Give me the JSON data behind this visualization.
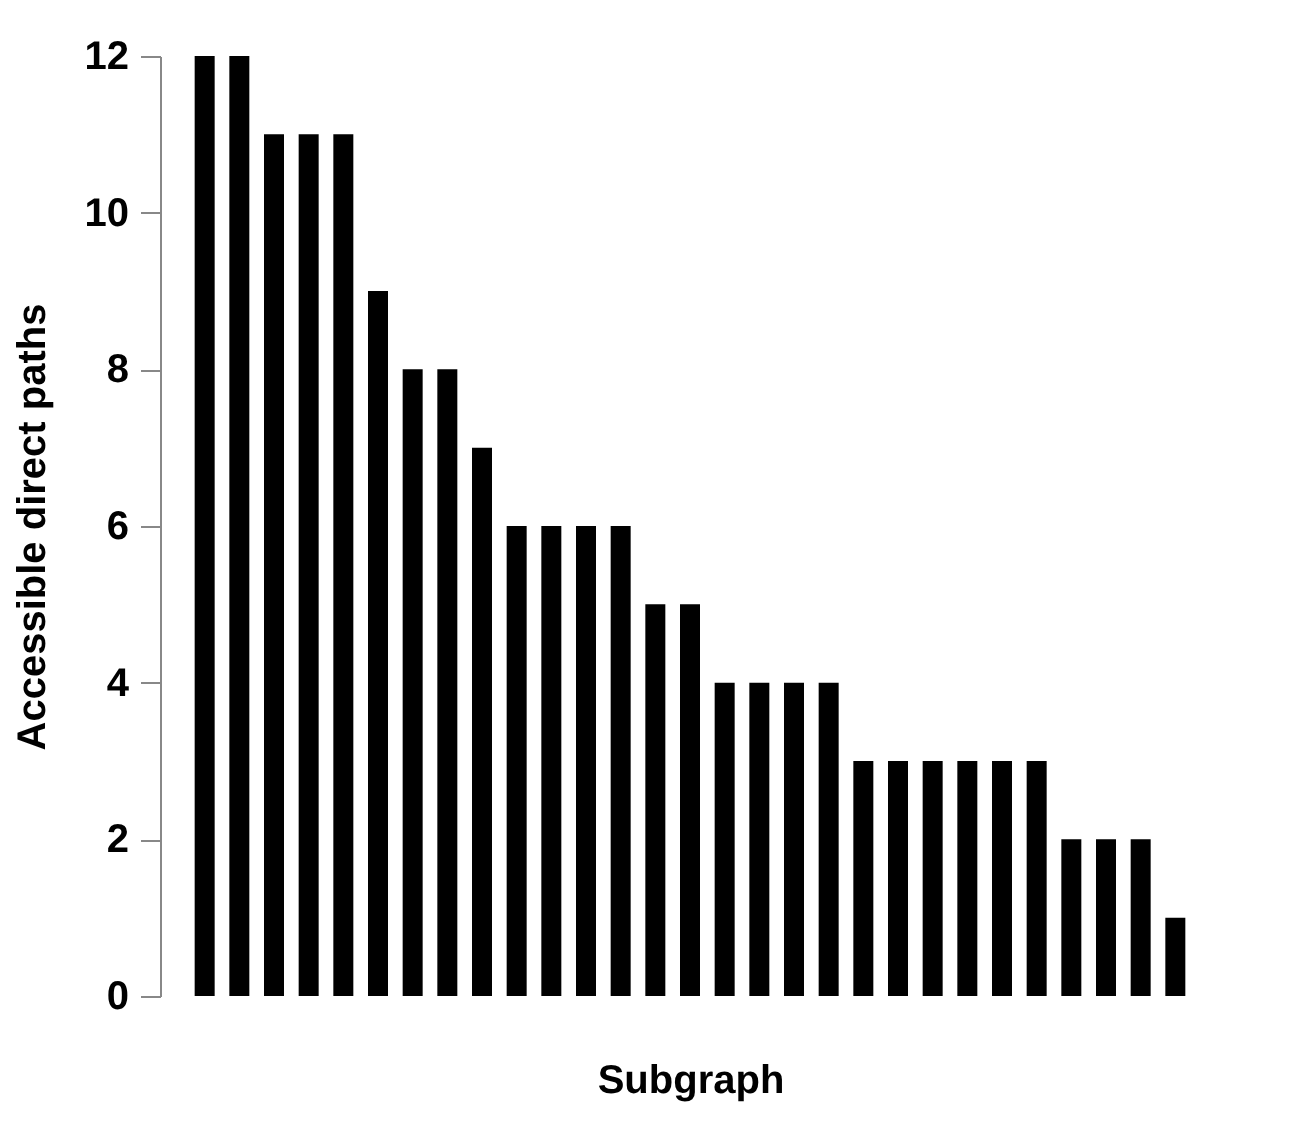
{
  "chart_data": {
    "type": "bar",
    "xlabel": "Subgraph",
    "ylabel": "Accessible direct paths",
    "categories": [
      null,
      null,
      null,
      null,
      null,
      null,
      null,
      null,
      null,
      null,
      null,
      null,
      null,
      null,
      null,
      null,
      null,
      null,
      null,
      null,
      null,
      null,
      null,
      null,
      null,
      null,
      null,
      null,
      null
    ],
    "values": [
      12,
      12,
      11,
      11,
      11,
      9,
      8,
      8,
      7,
      6,
      6,
      6,
      6,
      5,
      5,
      4,
      4,
      4,
      4,
      3,
      3,
      3,
      3,
      3,
      3,
      2,
      2,
      2,
      1
    ],
    "color": "#000000",
    "ylim": [
      0,
      12
    ],
    "yticks": [
      0,
      2,
      4,
      6,
      8,
      10,
      12
    ],
    "grid": false
  }
}
